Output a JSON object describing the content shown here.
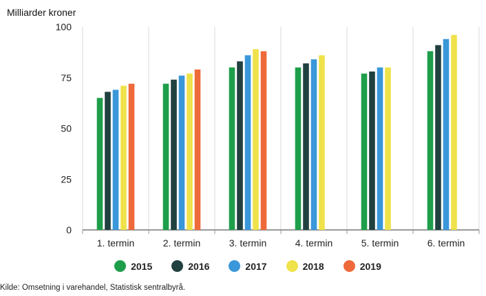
{
  "chart_data": {
    "type": "bar",
    "ylabel": "Milliarder kroner",
    "ylim": [
      0,
      100
    ],
    "yticks": [
      0,
      25,
      50,
      75,
      100
    ],
    "categories": [
      "1. termin",
      "2. termin",
      "3. termin",
      "4. termin",
      "5. termin",
      "6. termin"
    ],
    "grid": "vertical category separators",
    "legend_position": "bottom",
    "series": [
      {
        "name": "2015",
        "color": "#1e9e4a",
        "values": [
          65,
          72,
          80,
          80,
          77,
          88
        ]
      },
      {
        "name": "2016",
        "color": "#20413f",
        "values": [
          68,
          74,
          83,
          82,
          78,
          91
        ]
      },
      {
        "name": "2017",
        "color": "#3a97d9",
        "values": [
          69,
          76,
          86,
          84,
          80,
          94
        ]
      },
      {
        "name": "2018",
        "color": "#efe24a",
        "values": [
          71,
          77,
          89,
          86,
          80,
          96
        ]
      },
      {
        "name": "2019",
        "color": "#ef6a3a",
        "values": [
          72,
          79,
          88,
          null,
          null,
          null
        ]
      }
    ]
  },
  "source": "Kilde: Omsetning i varehandel, Statistisk sentralbyrå."
}
